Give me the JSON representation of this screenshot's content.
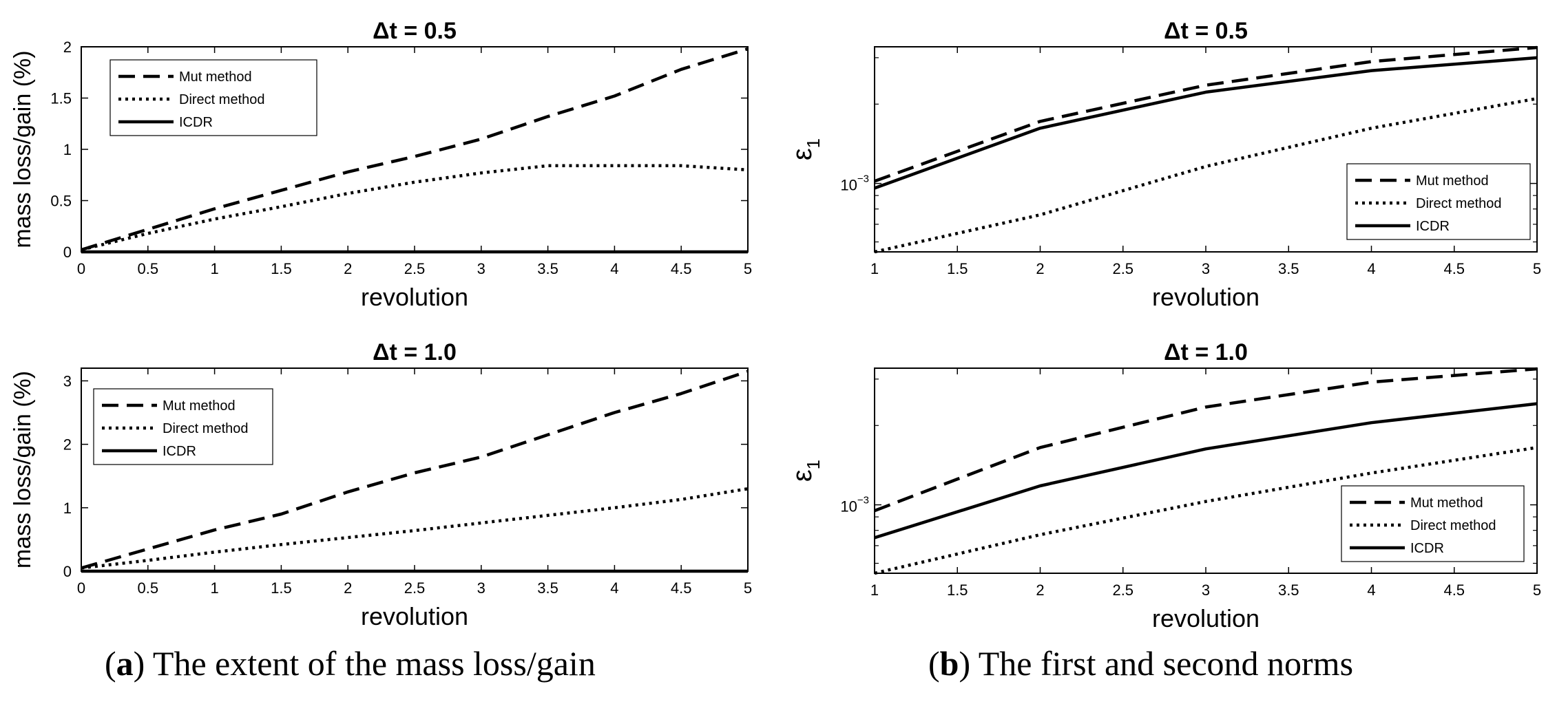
{
  "chart_data": [
    {
      "type": "line",
      "title": "Δt = 0.5",
      "xlabel": "revolution",
      "ylabel": "mass loss/gain (%)",
      "xlim": [
        0,
        5
      ],
      "ylim": [
        0,
        2
      ],
      "yscale": "linear",
      "xticks": [
        "0",
        "0.5",
        "1",
        "1.5",
        "2",
        "2.5",
        "3",
        "3.5",
        "4",
        "4.5",
        "5"
      ],
      "yticks": [
        "0",
        "0.5",
        "1",
        "1.5",
        "2"
      ],
      "legend_position": "top-left",
      "series": [
        {
          "name": "Mut method",
          "style": "dashed",
          "x": [
            0,
            0.5,
            1,
            1.5,
            2,
            2.5,
            3,
            3.5,
            4,
            4.5,
            5
          ],
          "y": [
            0.02,
            0.22,
            0.42,
            0.6,
            0.78,
            0.93,
            1.1,
            1.32,
            1.52,
            1.78,
            1.98
          ]
        },
        {
          "name": "Direct method",
          "style": "dotted",
          "x": [
            0,
            0.5,
            1,
            1.5,
            2,
            2.5,
            3,
            3.5,
            4,
            4.5,
            5
          ],
          "y": [
            0.02,
            0.18,
            0.32,
            0.44,
            0.57,
            0.68,
            0.77,
            0.84,
            0.84,
            0.84,
            0.8
          ]
        },
        {
          "name": "ICDR",
          "style": "solid",
          "x": [
            0,
            5
          ],
          "y": [
            0,
            0
          ]
        }
      ]
    },
    {
      "type": "line",
      "title": "Δt = 0.5",
      "xlabel": "revolution",
      "ylabel": "ε",
      "ylabel_sub": "1",
      "xlim": [
        1,
        5
      ],
      "ylim": [
        0.00055,
        0.0033
      ],
      "yscale": "log",
      "xticks": [
        "1",
        "1.5",
        "2",
        "2.5",
        "3",
        "3.5",
        "4",
        "4.5",
        "5"
      ],
      "ytick_label": {
        "base": "10",
        "exp": "−3",
        "value": 0.001
      },
      "legend_position": "bottom-right",
      "series": [
        {
          "name": "Mut method",
          "style": "dashed",
          "x": [
            1,
            2,
            3,
            4,
            5
          ],
          "y": [
            0.00102,
            0.00172,
            0.00236,
            0.0029,
            0.00328
          ]
        },
        {
          "name": "Direct method",
          "style": "dotted",
          "x": [
            1,
            2,
            3,
            4,
            5
          ],
          "y": [
            0.00055,
            0.00076,
            0.00116,
            0.00162,
            0.0021
          ]
        },
        {
          "name": "ICDR",
          "style": "solid",
          "x": [
            1,
            2,
            3,
            4,
            5
          ],
          "y": [
            0.00096,
            0.00162,
            0.00222,
            0.00268,
            0.003
          ]
        }
      ]
    },
    {
      "type": "line",
      "title": "Δt = 1.0",
      "xlabel": "revolution",
      "ylabel": "mass loss/gain (%)",
      "xlim": [
        0,
        5
      ],
      "ylim": [
        0,
        3.2
      ],
      "yscale": "linear",
      "xticks": [
        "0",
        "0.5",
        "1",
        "1.5",
        "2",
        "2.5",
        "3",
        "3.5",
        "4",
        "4.5",
        "5"
      ],
      "yticks": [
        "0",
        "1",
        "2",
        "3"
      ],
      "legend_position": "top-left",
      "series": [
        {
          "name": "Mut method",
          "style": "dashed",
          "x": [
            0,
            0.5,
            1,
            1.5,
            2,
            2.5,
            3,
            3.5,
            4,
            4.5,
            5
          ],
          "y": [
            0.05,
            0.35,
            0.65,
            0.9,
            1.25,
            1.55,
            1.8,
            2.15,
            2.5,
            2.8,
            3.15
          ]
        },
        {
          "name": "Direct method",
          "style": "dotted",
          "x": [
            0,
            0.5,
            1,
            1.5,
            2,
            2.5,
            3,
            3.5,
            4,
            4.5,
            5
          ],
          "y": [
            0.05,
            0.17,
            0.3,
            0.42,
            0.53,
            0.64,
            0.76,
            0.88,
            1.0,
            1.13,
            1.3
          ]
        },
        {
          "name": "ICDR",
          "style": "solid",
          "x": [
            0,
            5
          ],
          "y": [
            0,
            0
          ]
        }
      ]
    },
    {
      "type": "line",
      "title": "Δt = 1.0",
      "xlabel": "revolution",
      "ylabel": "ε",
      "ylabel_sub": "1",
      "xlim": [
        1,
        5
      ],
      "ylim": [
        0.00055,
        0.0033
      ],
      "yscale": "log",
      "xticks": [
        "1",
        "1.5",
        "2",
        "2.5",
        "3",
        "3.5",
        "4",
        "4.5",
        "5"
      ],
      "ytick_label": {
        "base": "10",
        "exp": "−3",
        "value": 0.001
      },
      "legend_position": "bottom-right",
      "series": [
        {
          "name": "Mut method",
          "style": "dashed",
          "x": [
            1,
            2,
            3,
            4,
            5
          ],
          "y": [
            0.00095,
            0.00165,
            0.00235,
            0.00292,
            0.00328
          ]
        },
        {
          "name": "Direct method",
          "style": "dotted",
          "x": [
            1,
            2,
            3,
            4,
            5
          ],
          "y": [
            0.00055,
            0.00077,
            0.00103,
            0.00132,
            0.00165
          ]
        },
        {
          "name": "ICDR",
          "style": "solid",
          "x": [
            1,
            2,
            3,
            4,
            5
          ],
          "y": [
            0.00075,
            0.00118,
            0.00163,
            0.00205,
            0.00242
          ]
        }
      ]
    }
  ],
  "captions": {
    "a": {
      "label": "a",
      "text": ") The extent of the mass loss/gain"
    },
    "b": {
      "label": "b",
      "text": ") The first and second norms"
    }
  }
}
